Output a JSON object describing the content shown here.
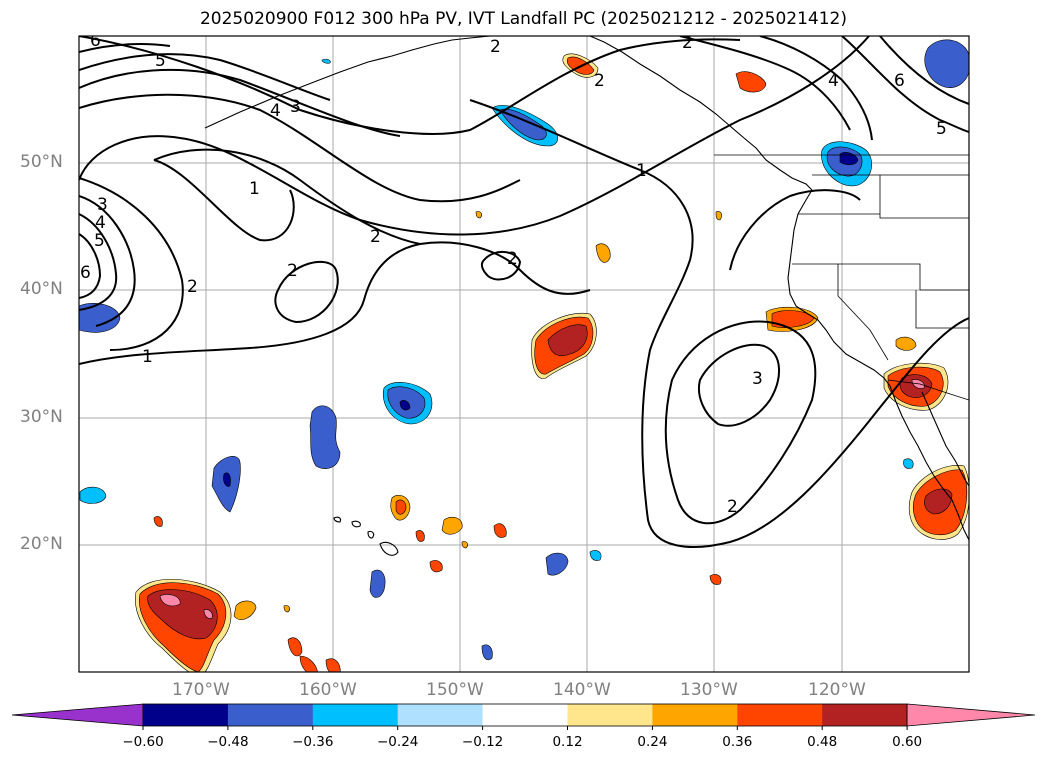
{
  "title": "2025020900 F012 300 hPa PV, IVT Landfall PC (2025021212 - 2025021412)",
  "map": {
    "lat_labels": [
      "50°N",
      "40°N",
      "30°N",
      "20°N"
    ],
    "lon_labels": [
      "170°W",
      "160°W",
      "150°W",
      "140°W",
      "130°W",
      "120°W"
    ]
  },
  "pv_contour_labels": [
    "1",
    "1",
    "1",
    "2",
    "2",
    "2",
    "2",
    "2",
    "2",
    "2",
    "2",
    "3",
    "3",
    "3",
    "4",
    "4",
    "4",
    "5",
    "5",
    "5",
    "6",
    "6",
    "6"
  ],
  "colorbar": {
    "ticks": [
      "−0.60",
      "−0.48",
      "−0.36",
      "−0.24",
      "−0.12",
      "0.12",
      "0.24",
      "0.36",
      "0.48",
      "0.60"
    ],
    "colors": [
      "#9932cc",
      "#00008b",
      "#3a5fcd",
      "#00bfff",
      "#b0e0ff",
      "#ffffff",
      "#ffe68c",
      "#ffa500",
      "#ff4500",
      "#b22222",
      "#ff88aa"
    ]
  }
}
